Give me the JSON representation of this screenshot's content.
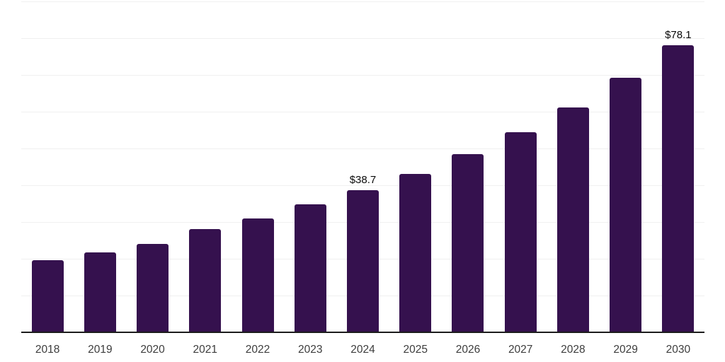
{
  "chart_data": {
    "type": "bar",
    "title": "",
    "xlabel": "",
    "ylabel": "",
    "categories": [
      "2018",
      "2019",
      "2020",
      "2021",
      "2022",
      "2023",
      "2024",
      "2025",
      "2026",
      "2027",
      "2028",
      "2029",
      "2030"
    ],
    "values": [
      19.6,
      21.8,
      24.0,
      28.1,
      31.0,
      34.8,
      38.7,
      43.1,
      48.4,
      54.5,
      61.2,
      69.2,
      78.1
    ],
    "data_labels": {
      "2024": "$38.7",
      "2030": "$78.1"
    },
    "ylim": [
      0,
      90
    ],
    "grid": true,
    "gridline_step": 10,
    "legend": "none",
    "colors": {
      "bar": "#35114E",
      "gridline": "#F0F0F0",
      "axis_line": "#1C1C1C",
      "tick_label": "#3D3D3D",
      "value_label": "#0A0A0A",
      "background": "#FFFFFF"
    }
  }
}
